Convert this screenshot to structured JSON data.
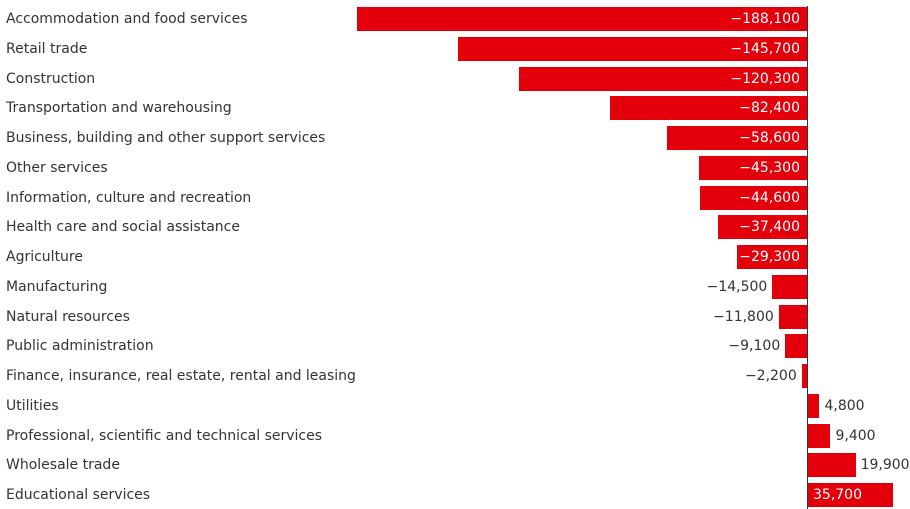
{
  "chart_data": {
    "type": "bar",
    "orientation": "horizontal",
    "bar_color": "#e3000b",
    "categories": [
      "Accommodation and food services",
      "Retail trade",
      "Construction",
      "Transportation and warehousing",
      "Business, building and other support services",
      "Other services",
      "Information, culture and recreation",
      "Health care and social assistance",
      "Agriculture",
      "Manufacturing",
      "Natural resources",
      "Public administration",
      "Finance, insurance, real estate, rental and leasing",
      "Utilities",
      "Professional, scientific and technical services",
      "Wholesale trade",
      "Educational services"
    ],
    "values": [
      -188100,
      -145700,
      -120300,
      -82400,
      -58600,
      -45300,
      -44600,
      -37400,
      -29300,
      -14500,
      -11800,
      -9100,
      -2200,
      4800,
      9400,
      19900,
      35700
    ],
    "value_labels": [
      "−188,100",
      "−145,700",
      "−120,300",
      "−82,400",
      "−58,600",
      "−45,300",
      "−44,600",
      "−37,400",
      "−29,300",
      "−14,500",
      "−11,800",
      "−9,100",
      "−2,200",
      "4,800",
      "9,400",
      "19,900",
      "35,700"
    ],
    "xlim": [
      -188100,
      35700
    ],
    "grid": false,
    "legend": "none"
  }
}
